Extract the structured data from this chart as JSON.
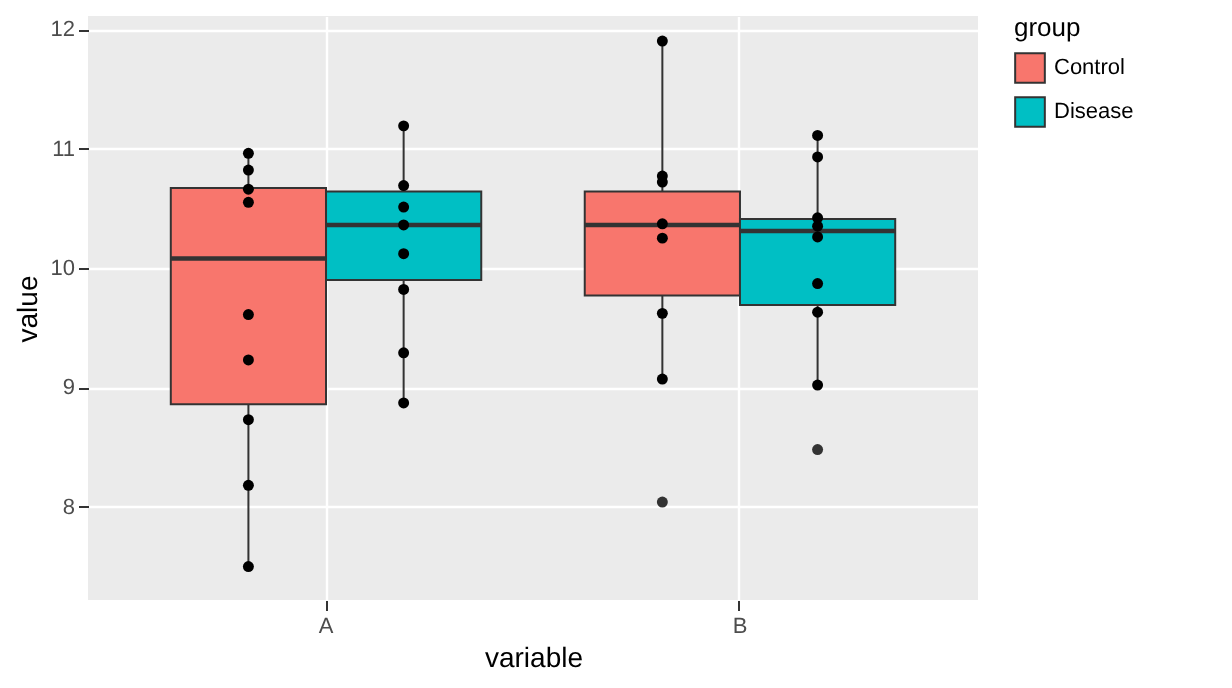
{
  "chart_data": {
    "type": "box",
    "xlabel": "variable",
    "ylabel": "value",
    "legend_title": "group",
    "categories": [
      "A",
      "B"
    ],
    "ylim": [
      7.22,
      12.11
    ],
    "yticks": [
      8,
      9,
      10,
      11,
      12
    ],
    "grid": true,
    "legend": "right",
    "marker": "circle",
    "series": [
      {
        "name": "Control",
        "color": "#f8766d",
        "boxes": [
          {
            "low": 7.5,
            "q1": 8.86,
            "median": 10.08,
            "q3": 10.67,
            "high": 10.96
          },
          {
            "low": 9.08,
            "q1": 9.77,
            "median": 10.36,
            "q3": 10.64,
            "high": 11.9,
            "outliers": [
              8.04
            ]
          }
        ]
      },
      {
        "name": "Disease",
        "color": "#00bfc4",
        "boxes": [
          {
            "low": 8.87,
            "q1": 9.9,
            "median": 10.36,
            "q3": 10.64,
            "high": 11.19
          },
          {
            "low": 9.02,
            "q1": 9.69,
            "median": 10.31,
            "q3": 10.41,
            "high": 11.11,
            "outliers": [
              8.48
            ]
          }
        ]
      },
      {
        "type": "scatter",
        "color": "#000000",
        "x": [
          "A",
          "A",
          "A",
          "A",
          "A",
          "A",
          "A",
          "A",
          "A",
          "B",
          "B",
          "B",
          "B",
          "B",
          "B",
          "B"
        ],
        "values": [
          10.96,
          10.82,
          10.66,
          10.55,
          9.61,
          9.23,
          8.73,
          8.18,
          7.5,
          11.9,
          10.77,
          10.72,
          10.37,
          10.25,
          9.62,
          9.07
        ]
      },
      {
        "type": "scatter",
        "color": "#000000",
        "x": [
          "A",
          "A",
          "A",
          "A",
          "A",
          "A",
          "A",
          "A",
          "B",
          "B",
          "B",
          "B",
          "B",
          "B",
          "B",
          "B"
        ],
        "values": [
          11.19,
          10.69,
          10.51,
          10.36,
          10.12,
          9.82,
          9.29,
          8.87,
          11.11,
          10.93,
          10.42,
          10.35,
          10.26,
          9.87,
          9.63,
          9.02
        ]
      }
    ]
  }
}
